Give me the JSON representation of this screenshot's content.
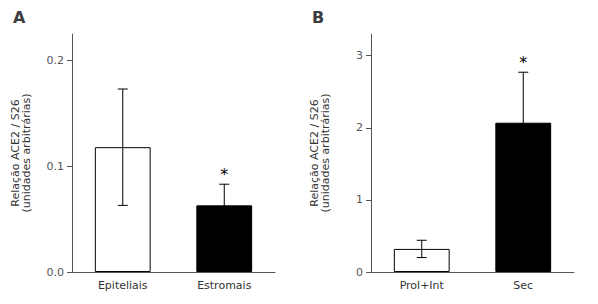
{
  "chart_data": [
    {
      "type": "bar",
      "title": "A",
      "categories": [
        "Epiteliais",
        "Estromais"
      ],
      "values": [
        0.118,
        0.063
      ],
      "errors": [
        0.055,
        0.02
      ],
      "colors": [
        "white",
        "black"
      ],
      "ylabel": "Relação ACE2 / S26\n(unidades arbitrárias)",
      "ylim": [
        0.0,
        0.225
      ],
      "yticks": [
        {
          "value": 0.0,
          "label": "0.0"
        },
        0.1,
        0.2
      ],
      "annotations": [
        {
          "text": "*",
          "category": "Estromais"
        }
      ],
      "grid": false
    },
    {
      "type": "bar",
      "title": "B",
      "categories": [
        "Prol+Int",
        "Sec"
      ],
      "values": [
        0.32,
        2.07
      ],
      "errors": [
        0.12,
        0.7
      ],
      "colors": [
        "white",
        "black"
      ],
      "ylabel": "Relação ACE2 / S26\n(unidades arbitrárias)",
      "ylim": [
        0,
        3.3
      ],
      "yticks": [
        0,
        1,
        2,
        3
      ],
      "annotations": [
        {
          "text": "*",
          "category": "Sec"
        }
      ],
      "grid": false
    }
  ]
}
